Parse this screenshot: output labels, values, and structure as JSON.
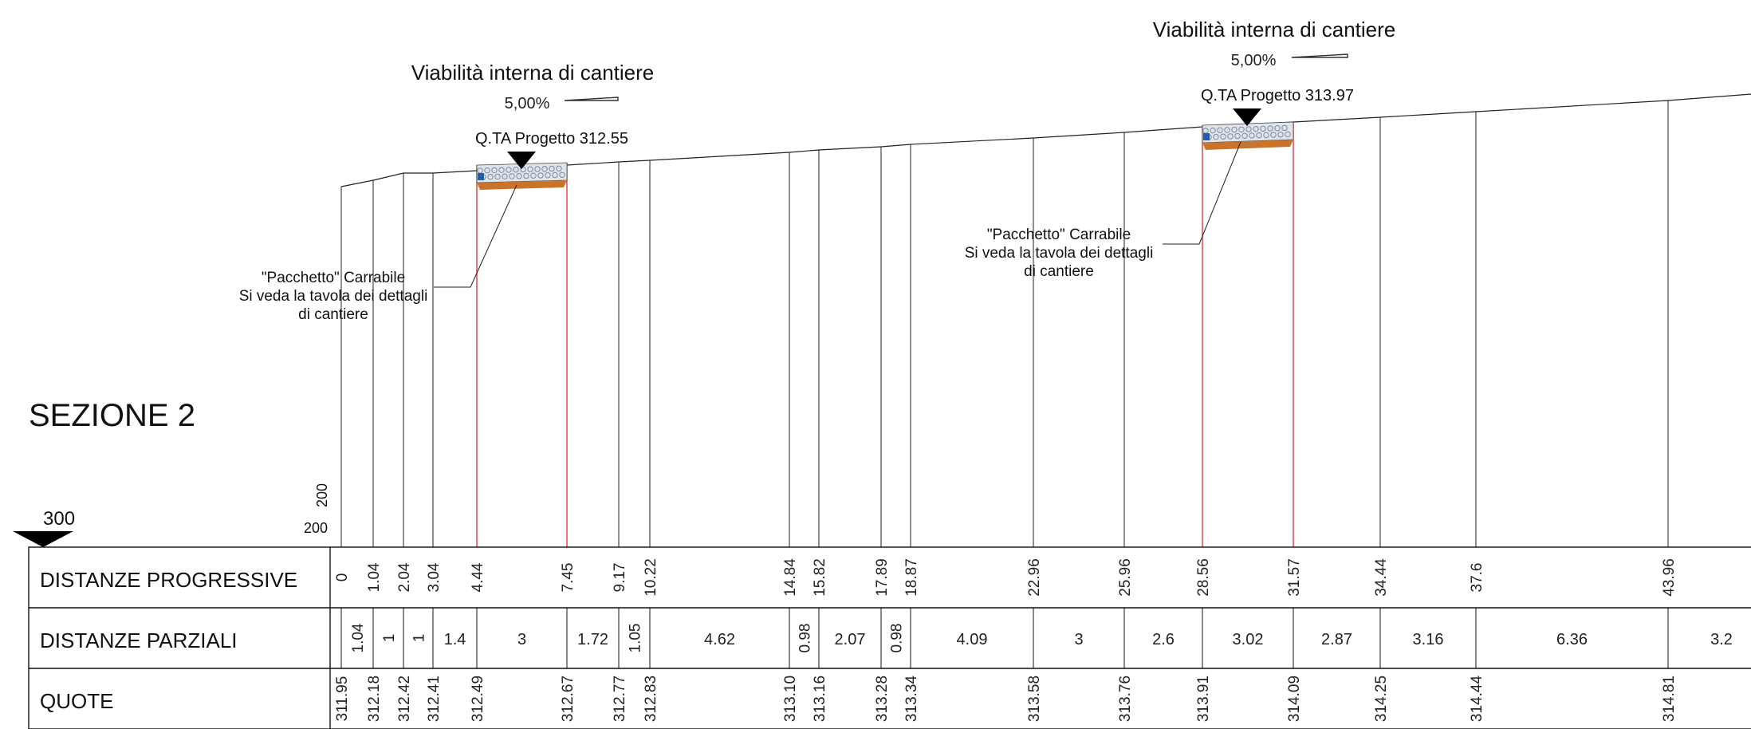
{
  "section_title": "SEZIONE 2",
  "scale": {
    "arrow_label": "300",
    "vertical": "200",
    "horizontal": "200"
  },
  "paths": [
    {
      "title": "Viabilità interna di cantiere",
      "slope": "5,00%",
      "level_label": "Q.TA Progetto 312.55",
      "note_lines": [
        "\"Pacchetto\" Carrabile",
        "Si veda la tavola dei dettagli",
        "di cantiere"
      ],
      "start_prog": 4.44,
      "end_prog": 7.45
    },
    {
      "title": "Viabilità interna di cantiere",
      "slope": "5,00%",
      "level_label": "Q.TA Progetto 313.97",
      "note_lines": [
        "\"Pacchetto\" Carrabile",
        "Si veda la tavola dei dettagli",
        "di cantiere"
      ],
      "start_prog": 28.56,
      "end_prog": 31.57
    }
  ],
  "table": {
    "rows": [
      "DISTANZE PROGRESSIVE",
      "DISTANZE PARZIALI",
      "QUOTE"
    ],
    "progressive": [
      "0",
      "1.04",
      "2.04",
      "3.04",
      "4.44",
      "7.45",
      "9.17",
      "10.22",
      "14.84",
      "15.82",
      "17.89",
      "18.87",
      "22.96",
      "25.96",
      "28.56",
      "31.57",
      "34.44",
      "37.6",
      "43.96"
    ],
    "partial": [
      "1.04",
      "1",
      "1",
      "1.4",
      "3",
      "1.72",
      "1.05",
      "4.62",
      "0.98",
      "2.07",
      "0.98",
      "4.09",
      "3",
      "2.6",
      "3.02",
      "2.87",
      "3.16",
      "6.36",
      "3.2"
    ],
    "quote": [
      "311.95",
      "312.18",
      "312.42",
      "312.41",
      "312.49",
      "312.67",
      "312.77",
      "312.83",
      "313.10",
      "313.16",
      "313.28",
      "313.34",
      "313.58",
      "313.76",
      "313.91",
      "314.09",
      "314.25",
      "314.44",
      "314.81"
    ]
  },
  "colors": {
    "line": "#222222",
    "path_edge": "#e53935",
    "fill_orange": "#c8742a",
    "fill_gravel": "#7a8aa0",
    "marker_blue": "#1e5fb4"
  }
}
